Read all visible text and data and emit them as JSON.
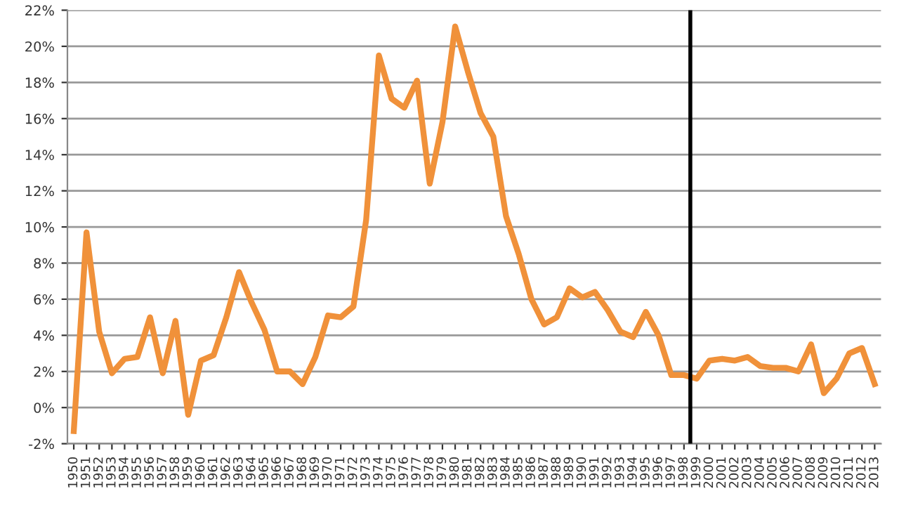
{
  "chart_data": {
    "type": "line",
    "x": [
      1950,
      1951,
      1952,
      1953,
      1954,
      1955,
      1956,
      1957,
      1958,
      1959,
      1960,
      1961,
      1962,
      1963,
      1964,
      1965,
      1966,
      1967,
      1968,
      1969,
      1970,
      1971,
      1972,
      1973,
      1974,
      1975,
      1976,
      1977,
      1978,
      1979,
      1980,
      1981,
      1982,
      1983,
      1984,
      1985,
      1986,
      1987,
      1988,
      1989,
      1990,
      1991,
      1992,
      1993,
      1994,
      1995,
      1996,
      1997,
      1998,
      1999,
      2000,
      2001,
      2002,
      2003,
      2004,
      2005,
      2006,
      2007,
      2008,
      2009,
      2010,
      2011,
      2012,
      2013
    ],
    "series": [
      {
        "color": "#f0913a",
        "values": [
          -1.3,
          9.7,
          4.2,
          1.9,
          2.7,
          2.8,
          5.0,
          1.9,
          4.8,
          -0.4,
          2.6,
          2.9,
          5.0,
          7.5,
          5.8,
          4.3,
          2.0,
          2.0,
          1.3,
          2.8,
          5.1,
          5.0,
          5.6,
          10.4,
          19.5,
          17.1,
          16.6,
          18.1,
          12.4,
          15.8,
          21.1,
          18.6,
          16.3,
          15.0,
          10.6,
          8.5,
          6.0,
          4.6,
          5.0,
          6.6,
          6.1,
          6.4,
          5.4,
          4.2,
          3.9,
          5.3,
          4.0,
          1.8,
          1.8,
          1.6,
          2.6,
          2.7,
          2.6,
          2.8,
          2.3,
          2.2,
          2.2,
          2.0,
          3.5,
          0.8,
          1.6,
          3.0,
          3.3,
          1.3
        ]
      }
    ],
    "xlim": [
      1949.5,
      2013.5
    ],
    "xticks": [
      1950,
      1951,
      1952,
      1953,
      1954,
      1955,
      1956,
      1957,
      1958,
      1959,
      1960,
      1961,
      1962,
      1963,
      1964,
      1965,
      1966,
      1967,
      1968,
      1969,
      1970,
      1971,
      1972,
      1973,
      1974,
      1975,
      1976,
      1977,
      1978,
      1979,
      1980,
      1981,
      1982,
      1983,
      1984,
      1985,
      1986,
      1987,
      1988,
      1989,
      1990,
      1991,
      1992,
      1993,
      1994,
      1995,
      1996,
      1997,
      1998,
      1999,
      2000,
      2001,
      2002,
      2003,
      2004,
      2005,
      2006,
      2007,
      2008,
      2009,
      2010,
      2011,
      2012,
      2013
    ],
    "ylim": [
      -2,
      22
    ],
    "yticks": [
      {
        "value": -2,
        "label": "-2%"
      },
      {
        "value": 0,
        "label": "0%"
      },
      {
        "value": 2,
        "label": "2%"
      },
      {
        "value": 4,
        "label": "4%"
      },
      {
        "value": 6,
        "label": "6%"
      },
      {
        "value": 8,
        "label": "8%"
      },
      {
        "value": 10,
        "label": "10%"
      },
      {
        "value": 12,
        "label": "12%"
      },
      {
        "value": 14,
        "label": "14%"
      },
      {
        "value": 16,
        "label": "16%"
      },
      {
        "value": 18,
        "label": "18%"
      },
      {
        "value": 20,
        "label": "20%"
      },
      {
        "value": 22,
        "label": "22%"
      }
    ],
    "ref_lines": [
      {
        "axis": "x",
        "value": 1998.5,
        "color": "#000000"
      }
    ],
    "grid": "y",
    "marker": "none",
    "line_style": "solid"
  }
}
